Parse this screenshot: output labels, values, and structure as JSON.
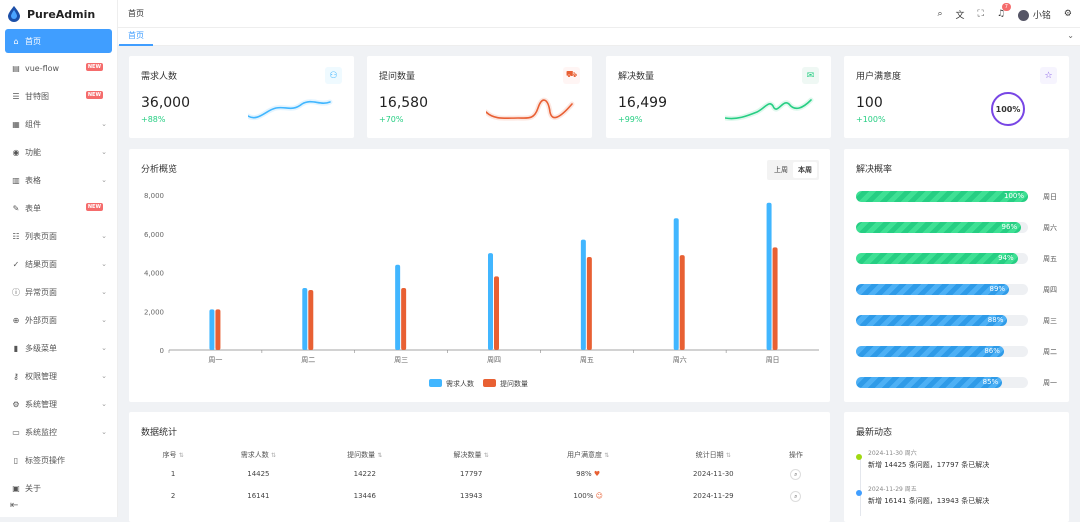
{
  "app": {
    "title": "PureAdmin"
  },
  "sidebar": {
    "items": [
      {
        "label": "首页",
        "icon": "home-icon",
        "glyph": "⌂",
        "active": true
      },
      {
        "label": "vue-flow",
        "icon": "flow-icon",
        "glyph": "▤",
        "badge": "NEW"
      },
      {
        "label": "甘特图",
        "icon": "gantt-icon",
        "glyph": "☰",
        "badge": "NEW"
      },
      {
        "label": "组件",
        "icon": "component-icon",
        "glyph": "▦",
        "chevron": true
      },
      {
        "label": "功能",
        "icon": "function-icon",
        "glyph": "◉",
        "chevron": true
      },
      {
        "label": "表格",
        "icon": "table-icon",
        "glyph": "▥",
        "chevron": true
      },
      {
        "label": "表单",
        "icon": "form-icon",
        "glyph": "✎",
        "badge": "NEW"
      },
      {
        "label": "列表页面",
        "icon": "list-icon",
        "glyph": "☷",
        "chevron": true
      },
      {
        "label": "结果页面",
        "icon": "result-icon",
        "glyph": "✓",
        "chevron": true
      },
      {
        "label": "异常页面",
        "icon": "exception-icon",
        "glyph": "ⓘ",
        "chevron": true
      },
      {
        "label": "外部页面",
        "icon": "external-icon",
        "glyph": "⊕",
        "chevron": true
      },
      {
        "label": "多级菜单",
        "icon": "menu-icon",
        "glyph": "▮",
        "chevron": true
      },
      {
        "label": "权限管理",
        "icon": "key-icon",
        "glyph": "⚷",
        "chevron": true
      },
      {
        "label": "系统管理",
        "icon": "settings-icon",
        "glyph": "⚙",
        "chevron": true
      },
      {
        "label": "系统监控",
        "icon": "monitor-icon",
        "glyph": "▭",
        "chevron": true
      },
      {
        "label": "标签页操作",
        "icon": "tag-icon",
        "glyph": "▯",
        "chevron": false
      },
      {
        "label": "关于",
        "icon": "about-icon",
        "glyph": "▣",
        "chevron": false
      }
    ]
  },
  "header": {
    "breadcrumb": "首页",
    "notification_count": "7",
    "username": "小铭"
  },
  "tabs": [
    {
      "label": "首页"
    }
  ],
  "stats": [
    {
      "title": "需求人数",
      "value": "36,000",
      "delta": "+88%",
      "color": "#41b6ff",
      "bg": "#effaff",
      "glyph": "⚇"
    },
    {
      "title": "提问数量",
      "value": "16,580",
      "delta": "+70%",
      "color": "#e85f33",
      "bg": "#fff5f4",
      "glyph": "⛟"
    },
    {
      "title": "解决数量",
      "value": "16,499",
      "delta": "+99%",
      "color": "#26ce83",
      "bg": "#eff8f4",
      "glyph": "✉"
    },
    {
      "title": "用户满意度",
      "value": "100",
      "delta": "+100%",
      "color": "#7846e5",
      "bg": "#f6f4fe",
      "glyph": "☆"
    }
  ],
  "satisfaction_ring": "100%",
  "overview": {
    "title": "分析概览",
    "toggle": [
      "上周",
      "本周"
    ],
    "active": "本周"
  },
  "chart_data": {
    "type": "bar",
    "categories": [
      "周一",
      "周二",
      "周三",
      "周四",
      "周五",
      "周六",
      "周日"
    ],
    "series": [
      {
        "name": "需求人数",
        "color": "#41b6ff",
        "values": [
          2100,
          3200,
          4400,
          5000,
          5700,
          6800,
          7600
        ]
      },
      {
        "name": "提问数量",
        "color": "#e86033",
        "values": [
          2100,
          3100,
          3200,
          3800,
          4800,
          4900,
          5300
        ]
      }
    ],
    "ylim": [
      0,
      8000
    ],
    "yticks": [
      "0",
      "2,000",
      "4,000",
      "6,000",
      "8,000"
    ],
    "legend": "bottom"
  },
  "solve_rate": {
    "title": "解决概率",
    "rows": [
      {
        "label": "100%",
        "value": 100,
        "day": "周日",
        "color": "green"
      },
      {
        "label": "96%",
        "value": 96,
        "day": "周六",
        "color": "green"
      },
      {
        "label": "94%",
        "value": 94,
        "day": "周五",
        "color": "green"
      },
      {
        "label": "89%",
        "value": 89,
        "day": "周四",
        "color": "blue"
      },
      {
        "label": "88%",
        "value": 88,
        "day": "周三",
        "color": "blue"
      },
      {
        "label": "86%",
        "value": 86,
        "day": "周二",
        "color": "blue"
      },
      {
        "label": "85%",
        "value": 85,
        "day": "周一",
        "color": "blue"
      }
    ]
  },
  "table": {
    "title": "数据统计",
    "headers": [
      "序号",
      "需求人数",
      "提问数量",
      "解决数量",
      "用户满意度",
      "统计日期",
      "操作"
    ],
    "rows": [
      [
        "1",
        "14425",
        "14222",
        "17797",
        "98%",
        "2024-11-30"
      ],
      [
        "2",
        "16141",
        "13446",
        "13943",
        "100%",
        "2024-11-29"
      ]
    ]
  },
  "activity": {
    "title": "最新动态",
    "items": [
      {
        "time": "2024-11-30 周六",
        "text": "新增 14425 条问题，17797 条已解决",
        "color": "#a0d911"
      },
      {
        "time": "2024-11-29 周五",
        "text": "新增 16141 条问题，13943 条已解决",
        "color": "#409eff"
      }
    ]
  }
}
